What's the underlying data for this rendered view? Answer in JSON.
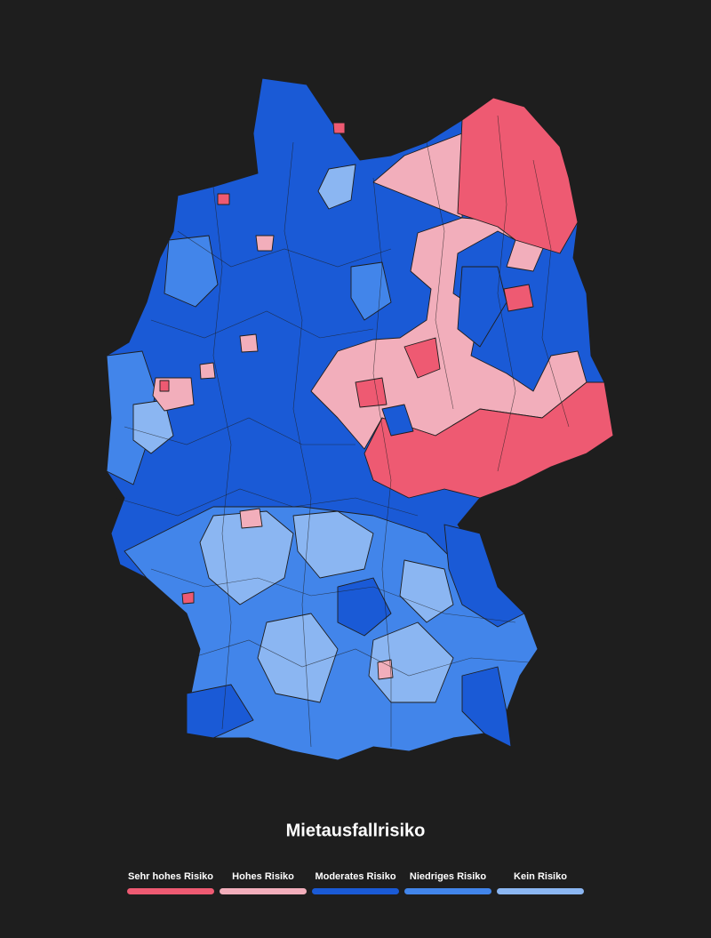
{
  "title": "Mietausfallrisiko",
  "legend": [
    {
      "label": "Sehr hohes Risiko",
      "color": "#ee5a72"
    },
    {
      "label": "Hohes Risiko",
      "color": "#f2aebb"
    },
    {
      "label": "Moderates Risiko",
      "color": "#1a5ad6"
    },
    {
      "label": "Niedriges Risiko",
      "color": "#4285ea"
    },
    {
      "label": "Kein Risiko",
      "color": "#8bb6f2"
    }
  ]
}
